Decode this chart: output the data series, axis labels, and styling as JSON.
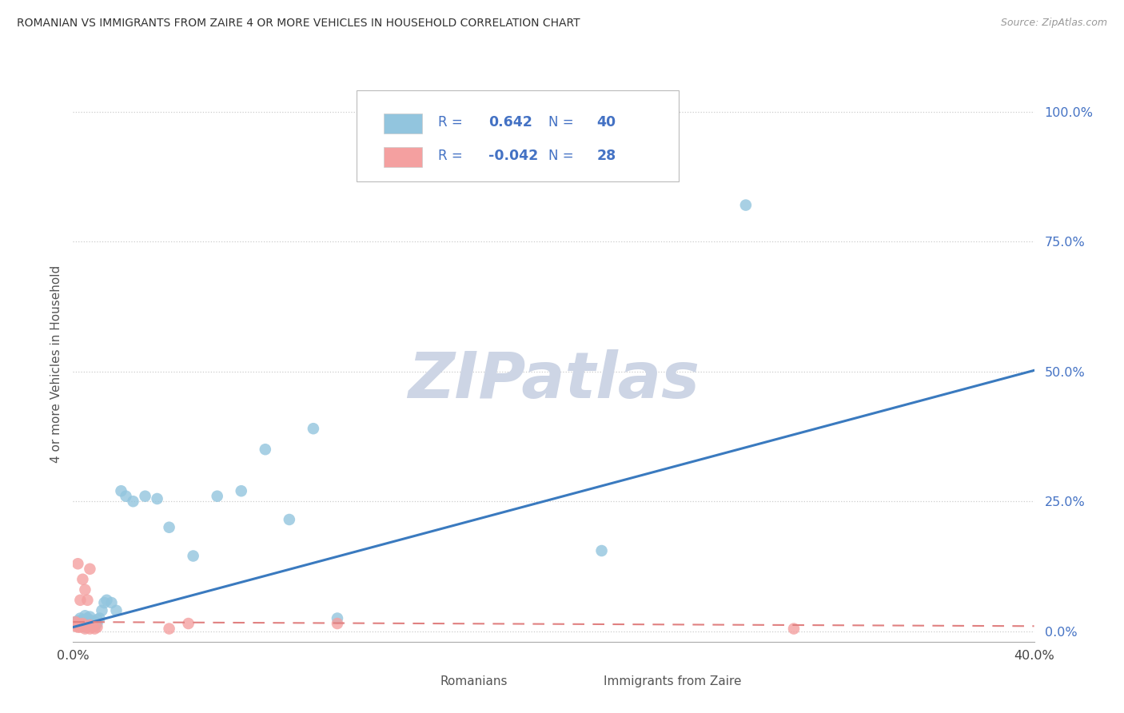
{
  "title": "ROMANIAN VS IMMIGRANTS FROM ZAIRE 4 OR MORE VEHICLES IN HOUSEHOLD CORRELATION CHART",
  "source": "Source: ZipAtlas.com",
  "ylabel": "4 or more Vehicles in Household",
  "xlim": [
    0.0,
    0.4
  ],
  "ylim": [
    -0.02,
    1.05
  ],
  "romanian_R": 0.642,
  "romanian_N": 40,
  "zaire_R": -0.042,
  "zaire_N": 28,
  "romanian_color": "#92c5de",
  "zaire_color": "#f4a0a0",
  "romanian_line_color": "#3a7abf",
  "zaire_line_color": "#e08080",
  "watermark_color": "#cdd5e5",
  "background_color": "#ffffff",
  "grid_color": "#cccccc",
  "legend_text_color": "#4472c4",
  "ytick_color": "#4472c4",
  "romanian_x": [
    0.001,
    0.002,
    0.002,
    0.003,
    0.003,
    0.004,
    0.004,
    0.005,
    0.005,
    0.006,
    0.006,
    0.007,
    0.007,
    0.008,
    0.008,
    0.009,
    0.009,
    0.01,
    0.01,
    0.011,
    0.012,
    0.013,
    0.014,
    0.016,
    0.018,
    0.02,
    0.022,
    0.025,
    0.03,
    0.035,
    0.04,
    0.05,
    0.06,
    0.07,
    0.08,
    0.09,
    0.1,
    0.11,
    0.22,
    0.28
  ],
  "romanian_y": [
    0.018,
    0.012,
    0.02,
    0.015,
    0.025,
    0.01,
    0.022,
    0.008,
    0.03,
    0.015,
    0.025,
    0.028,
    0.018,
    0.02,
    0.012,
    0.018,
    0.01,
    0.022,
    0.015,
    0.025,
    0.04,
    0.055,
    0.06,
    0.055,
    0.04,
    0.27,
    0.26,
    0.25,
    0.26,
    0.255,
    0.2,
    0.145,
    0.26,
    0.27,
    0.35,
    0.215,
    0.39,
    0.025,
    0.155,
    0.82
  ],
  "zaire_x": [
    0.001,
    0.001,
    0.002,
    0.002,
    0.002,
    0.003,
    0.003,
    0.003,
    0.004,
    0.004,
    0.004,
    0.005,
    0.005,
    0.005,
    0.006,
    0.006,
    0.006,
    0.007,
    0.007,
    0.007,
    0.008,
    0.008,
    0.009,
    0.01,
    0.04,
    0.048,
    0.11,
    0.3
  ],
  "zaire_y": [
    0.01,
    0.018,
    0.008,
    0.015,
    0.13,
    0.008,
    0.06,
    0.01,
    0.012,
    0.015,
    0.1,
    0.005,
    0.01,
    0.08,
    0.01,
    0.06,
    0.008,
    0.005,
    0.012,
    0.12,
    0.01,
    0.008,
    0.005,
    0.008,
    0.005,
    0.015,
    0.015,
    0.005
  ],
  "ytick_vals": [
    0.0,
    0.25,
    0.5,
    0.75,
    1.0
  ],
  "ytick_labels": [
    "0.0%",
    "25.0%",
    "50.0%",
    "75.0%",
    "100.0%"
  ],
  "xtick_vals": [
    0.0,
    0.05,
    0.1,
    0.15,
    0.2,
    0.25,
    0.3,
    0.35,
    0.4
  ],
  "xtick_labels": [
    "0.0%",
    "",
    "",
    "",
    "",
    "",
    "",
    "",
    "40.0%"
  ],
  "rom_line_x": [
    0.0,
    0.4
  ],
  "rom_line_y": [
    0.008,
    0.502
  ],
  "zai_line_x": [
    0.0,
    0.4
  ],
  "zai_line_y": [
    0.018,
    0.01
  ]
}
